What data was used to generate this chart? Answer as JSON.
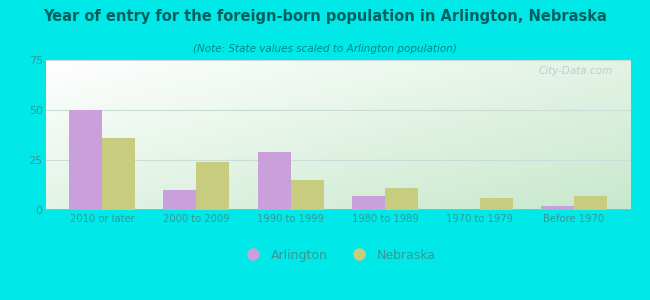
{
  "title": "Year of entry for the foreign-born population in Arlington, Nebraska",
  "subtitle": "(Note: State values scaled to Arlington population)",
  "categories": [
    "2010 or later",
    "2000 to 2009",
    "1990 to 1999",
    "1980 to 1989",
    "1970 to 1979",
    "Before 1970"
  ],
  "arlington_values": [
    50,
    10,
    29,
    7,
    0,
    2
  ],
  "nebraska_values": [
    36,
    24,
    15,
    11,
    6,
    7
  ],
  "arlington_color": "#c9a0dc",
  "nebraska_color": "#c8cc7f",
  "background_outer": "#00e8e8",
  "ylim": [
    0,
    75
  ],
  "yticks": [
    0,
    25,
    50,
    75
  ],
  "bar_width": 0.35,
  "legend_arlington": "Arlington",
  "legend_nebraska": "Nebraska",
  "watermark": "City-Data.com",
  "title_color": "#006060",
  "subtitle_color": "#008888",
  "tick_color": "#339999",
  "grid_color": "#c8ddd8"
}
